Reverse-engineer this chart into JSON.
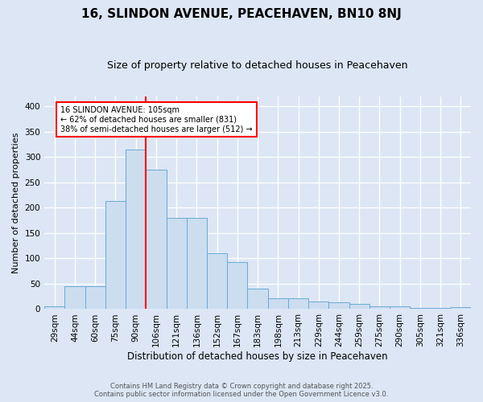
{
  "title": "16, SLINDON AVENUE, PEACEHAVEN, BN10 8NJ",
  "subtitle": "Size of property relative to detached houses in Peacehaven",
  "xlabel": "Distribution of detached houses by size in Peacehaven",
  "ylabel": "Number of detached properties",
  "categories": [
    "29sqm",
    "44sqm",
    "60sqm",
    "75sqm",
    "90sqm",
    "106sqm",
    "121sqm",
    "136sqm",
    "152sqm",
    "167sqm",
    "183sqm",
    "198sqm",
    "213sqm",
    "229sqm",
    "244sqm",
    "259sqm",
    "275sqm",
    "290sqm",
    "305sqm",
    "321sqm",
    "336sqm"
  ],
  "values": [
    5,
    45,
    45,
    213,
    315,
    275,
    180,
    180,
    110,
    93,
    40,
    22,
    22,
    15,
    13,
    10,
    5,
    6,
    3,
    2,
    4
  ],
  "bar_color": "#ccddf0",
  "bar_edge_color": "#6aaad4",
  "background_color": "#dce6f5",
  "grid_color": "#ffffff",
  "ylim": [
    0,
    420
  ],
  "yticks": [
    0,
    50,
    100,
    150,
    200,
    250,
    300,
    350,
    400
  ],
  "red_line_x": 4.5,
  "annotation_title": "16 SLINDON AVENUE: 105sqm",
  "annotation_line1": "← 62% of detached houses are smaller (831)",
  "annotation_line2": "38% of semi-detached houses are larger (512) →",
  "footer1": "Contains HM Land Registry data © Crown copyright and database right 2025.",
  "footer2": "Contains public sector information licensed under the Open Government Licence v3.0.",
  "title_fontsize": 11,
  "subtitle_fontsize": 9,
  "ylabel_fontsize": 8,
  "xlabel_fontsize": 8.5,
  "tick_fontsize": 7.5,
  "footer_fontsize": 6
}
